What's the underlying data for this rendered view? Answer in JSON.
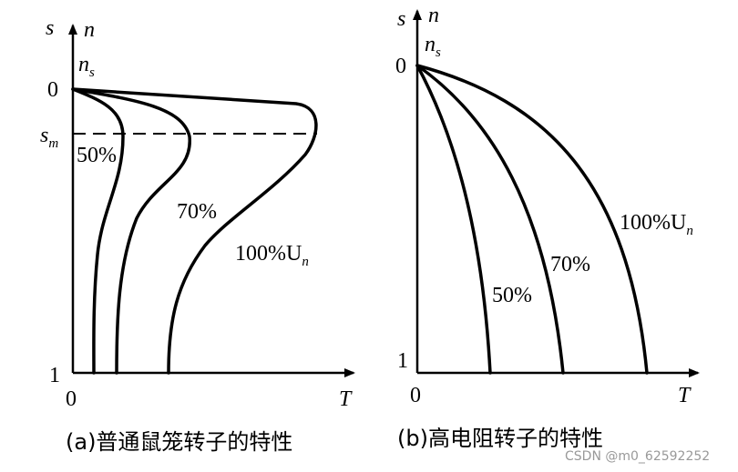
{
  "panel_a": {
    "axis_s": "s",
    "axis_n": "n",
    "ns": {
      "main": "n",
      "sub": "s"
    },
    "zero_s": "0",
    "sm": {
      "main": "s",
      "sub": "m"
    },
    "one": "1",
    "origin": "0",
    "axis_T": "T",
    "curve_labels": [
      "50%",
      "70%",
      {
        "main": "100%U",
        "sub": "n"
      }
    ],
    "caption": "(a)普通鼠笼转子的特性"
  },
  "panel_b": {
    "axis_s": "s",
    "axis_n": "n",
    "ns": {
      "main": "n",
      "sub": "s"
    },
    "zero_s": "0",
    "one": "1",
    "origin": "0",
    "axis_T": "T",
    "curve_labels": [
      "50%",
      "70%",
      {
        "main": "100%U",
        "sub": "n"
      }
    ],
    "caption": "(b)高电阻转子的特性"
  },
  "watermark": "CSDN @m0_62592252"
}
